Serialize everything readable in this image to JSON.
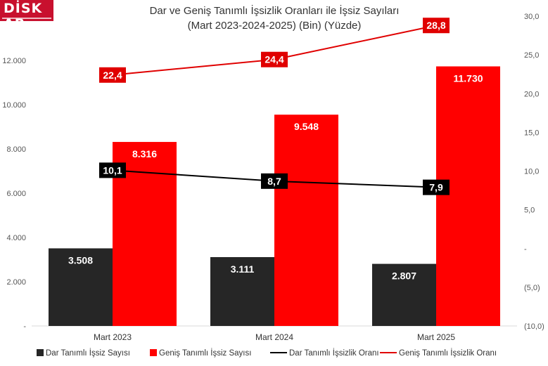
{
  "logo": {
    "brand": "DİSK AR"
  },
  "chart_data": {
    "type": "bar",
    "title": "Dar ve Geniş Tanımlı İşsizlik Oranları ile İşsiz Sayıları",
    "subtitle": "(Mart 2023-2024-2025) (Bin) (Yüzde)",
    "categories": [
      "Mart 2023",
      "Mart 2024",
      "Mart 2025"
    ],
    "series": [
      {
        "name": "Dar Tanımlı İşsiz Sayısı",
        "type": "bar",
        "axis": "left",
        "color": "#262626",
        "values": [
          3508,
          3111,
          2807
        ],
        "labels": [
          "3.508",
          "3.111",
          "2.807"
        ]
      },
      {
        "name": "Geniş Tanımlı İşsiz Sayısı",
        "type": "bar",
        "axis": "left",
        "color": "#ff0000",
        "values": [
          8316,
          9548,
          11730
        ],
        "labels": [
          "8.316",
          "9.548",
          "11.730"
        ]
      },
      {
        "name": "Dar Tanımlı İşsizlik Oranı",
        "type": "line",
        "axis": "right",
        "color": "#000000",
        "values": [
          10.1,
          8.7,
          7.9
        ],
        "labels": [
          "10,1",
          "8,7",
          "7,9"
        ]
      },
      {
        "name": "Geniş Tanımlı İşsizlik Oranı",
        "type": "line",
        "axis": "right",
        "color": "#e00000",
        "values": [
          22.4,
          24.4,
          28.8
        ],
        "labels": [
          "22,4",
          "24,4",
          "28,8"
        ]
      }
    ],
    "y_left": {
      "ylim": [
        0,
        14000
      ],
      "ticks": [
        0,
        2000,
        4000,
        6000,
        8000,
        10000,
        12000
      ],
      "tick_labels": [
        "-",
        "2.000",
        "4.000",
        "6.000",
        "8.000",
        "10.000",
        "12.000"
      ]
    },
    "y_right": {
      "ylim": [
        -10,
        30
      ],
      "ticks": [
        -10,
        -5,
        0,
        5,
        10,
        15,
        20,
        25,
        30
      ],
      "tick_labels": [
        "(10,0)",
        "(5,0)",
        "-",
        "5,0",
        "10,0",
        "15,0",
        "20,0",
        "25,0",
        "30,0"
      ]
    },
    "grid": false,
    "legend": "bottom"
  }
}
